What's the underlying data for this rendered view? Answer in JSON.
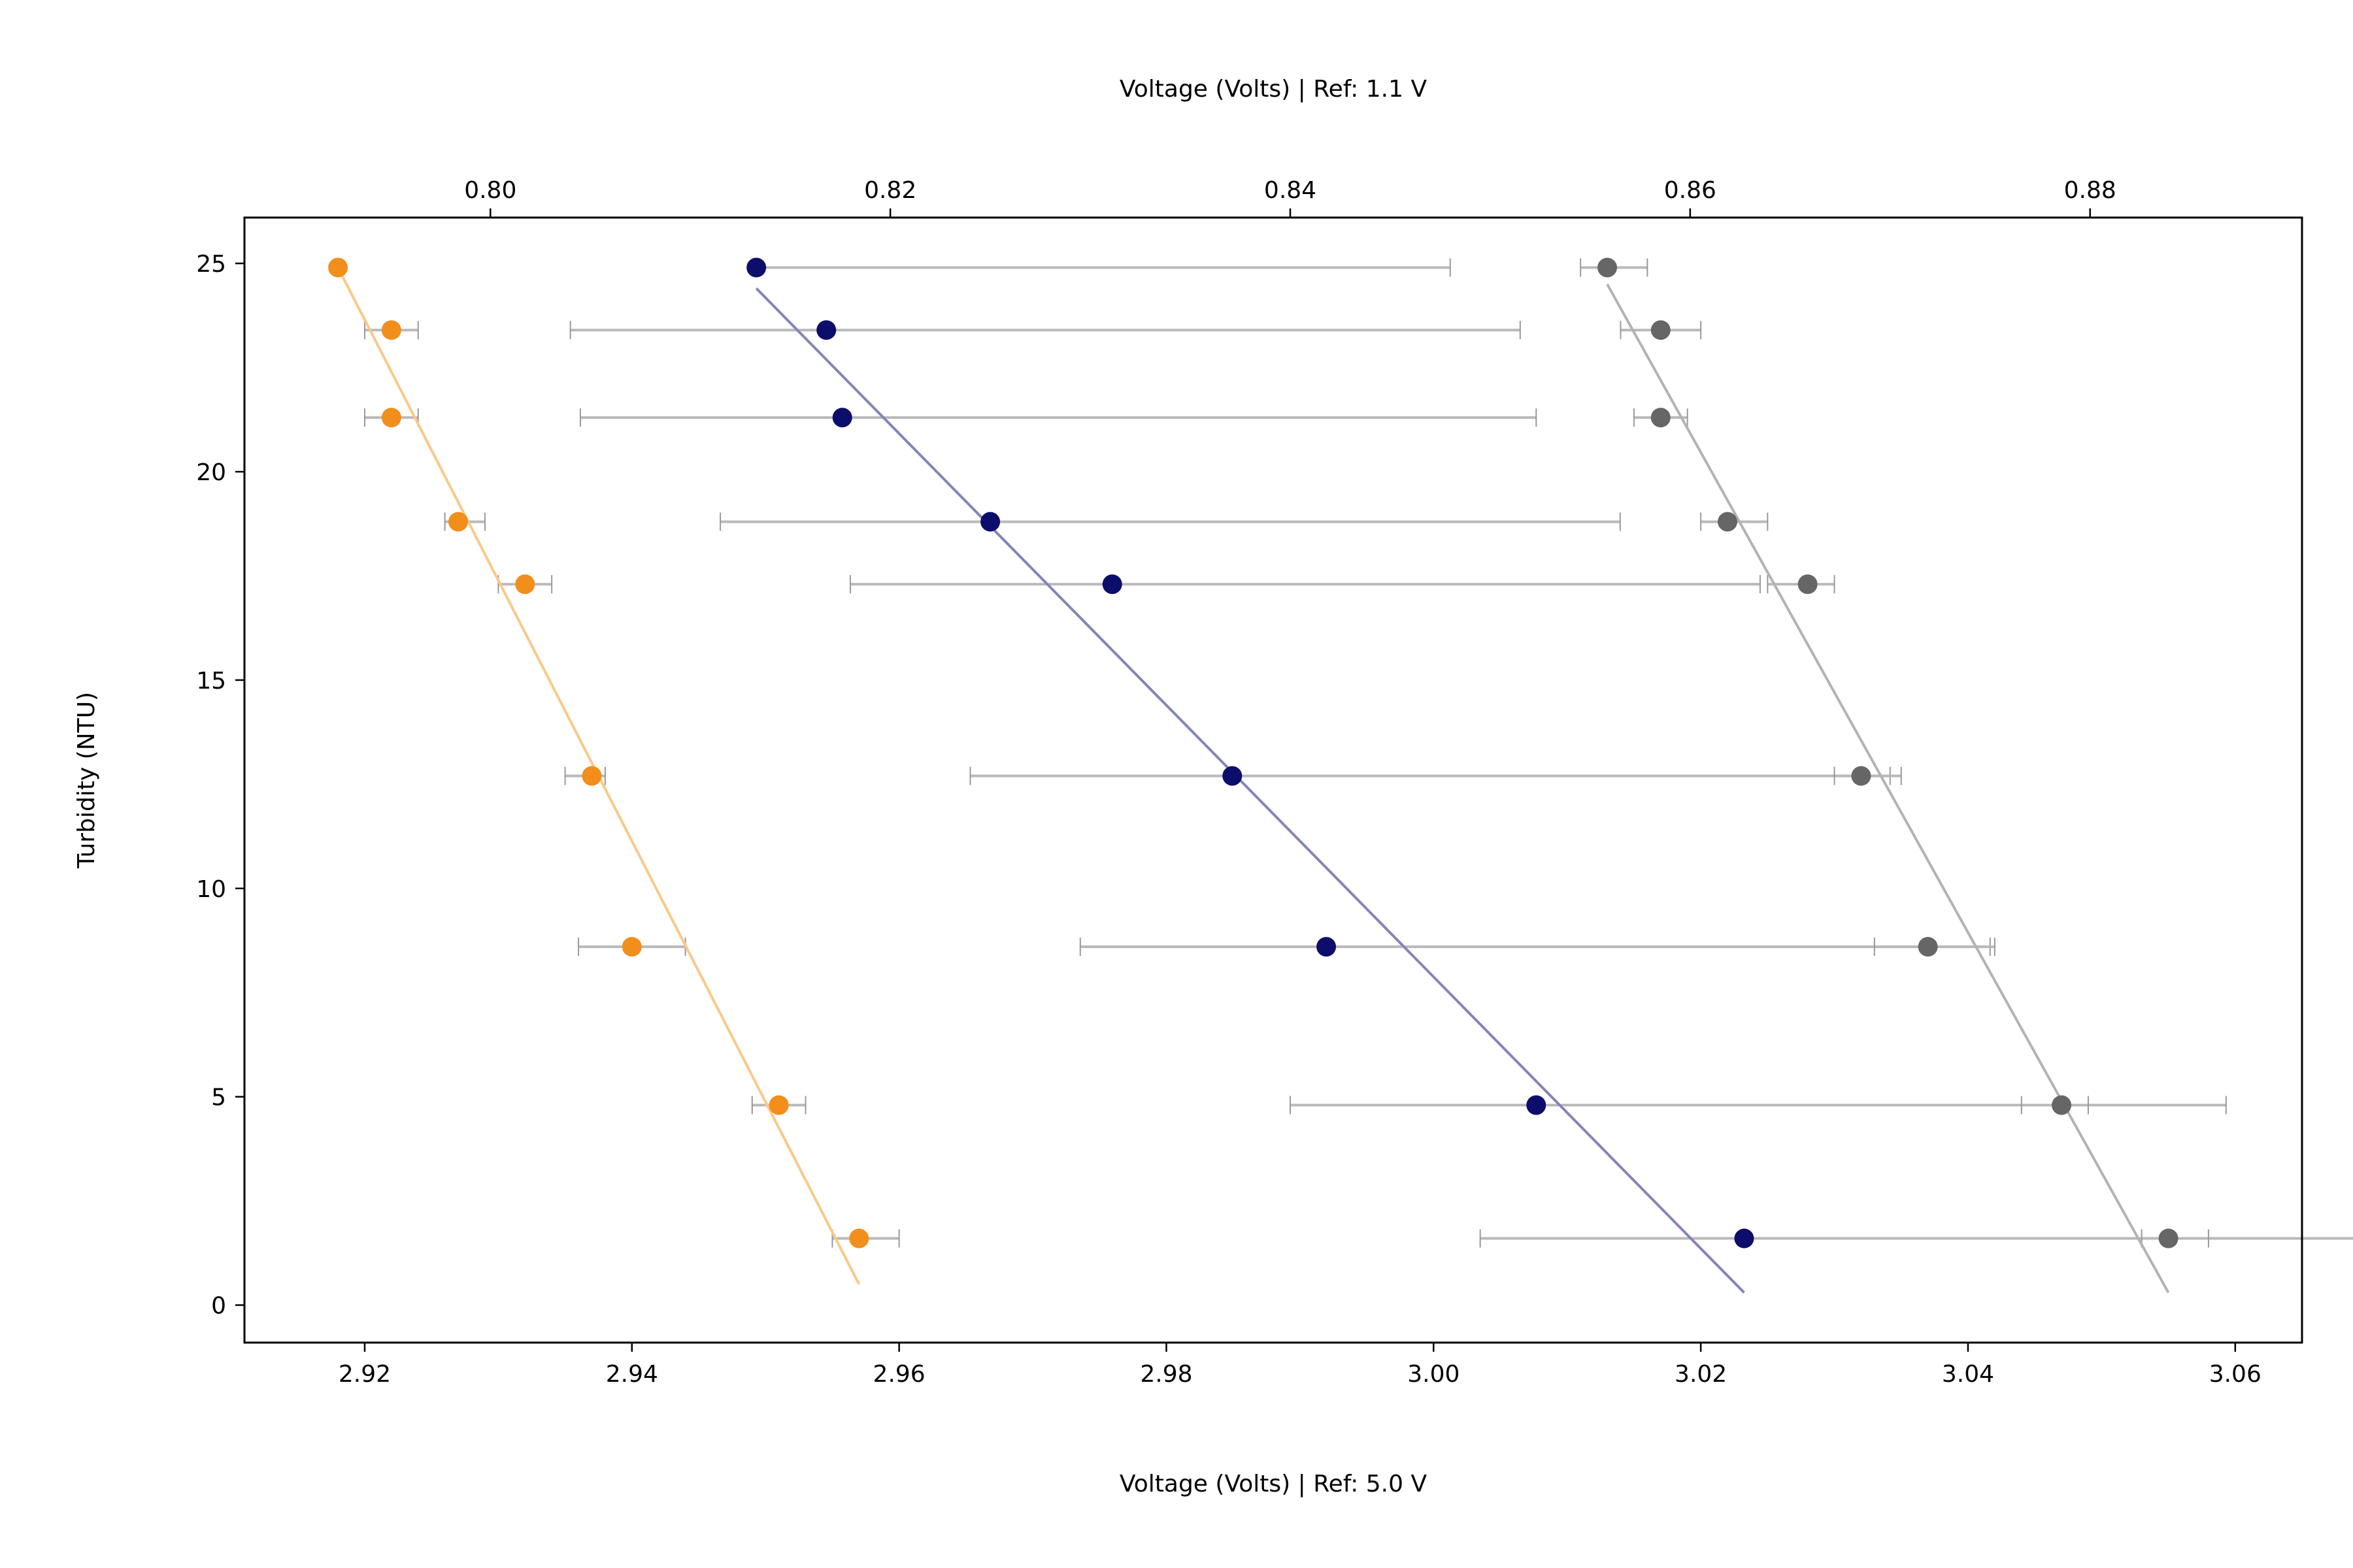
{
  "chart_data": {
    "type": "scatter",
    "xlabel": "Voltage (Volts) | Ref: 5.0 V",
    "x2label": "Voltage (Volts) | Ref: 1.1 V",
    "ylabel": "Turbidity (NTU)",
    "xlim": [
      2.911,
      3.065
    ],
    "x2lim": [
      0.7877,
      0.8906
    ],
    "ylim": [
      -0.9,
      26.1
    ],
    "x_ticks": [
      {
        "value": 2.92,
        "label": "2.92"
      },
      {
        "value": 2.94,
        "label": "2.94"
      },
      {
        "value": 2.96,
        "label": "2.96"
      },
      {
        "value": 2.98,
        "label": "2.98"
      },
      {
        "value": 3.0,
        "label": "3.00"
      },
      {
        "value": 3.02,
        "label": "3.02"
      },
      {
        "value": 3.04,
        "label": "3.04"
      },
      {
        "value": 3.06,
        "label": "3.06"
      }
    ],
    "x2_ticks": [
      {
        "value": 0.8,
        "label": "0.80"
      },
      {
        "value": 0.82,
        "label": "0.82"
      },
      {
        "value": 0.84,
        "label": "0.84"
      },
      {
        "value": 0.86,
        "label": "0.86"
      },
      {
        "value": 0.88,
        "label": "0.88"
      }
    ],
    "y_ticks": [
      {
        "value": 0,
        "label": "0"
      },
      {
        "value": 5,
        "label": "5"
      },
      {
        "value": 10,
        "label": "10"
      },
      {
        "value": 15,
        "label": "15"
      },
      {
        "value": 20,
        "label": "20"
      },
      {
        "value": 25,
        "label": "25"
      }
    ],
    "grid": false,
    "series": [
      {
        "axis": "x",
        "color": "#f28e1c",
        "fit_color": "#f9c98a",
        "points": [
          {
            "y": 24.9,
            "x": 2.918,
            "xerr_low": 2.918,
            "xerr_high": 2.918
          },
          {
            "y": 23.4,
            "x": 2.922,
            "xerr_low": 2.92,
            "xerr_high": 2.924
          },
          {
            "y": 21.3,
            "x": 2.922,
            "xerr_low": 2.92,
            "xerr_high": 2.924
          },
          {
            "y": 18.8,
            "x": 2.927,
            "xerr_low": 2.926,
            "xerr_high": 2.929
          },
          {
            "y": 17.3,
            "x": 2.932,
            "xerr_low": 2.93,
            "xerr_high": 2.934
          },
          {
            "y": 12.7,
            "x": 2.937,
            "xerr_low": 2.935,
            "xerr_high": 2.938
          },
          {
            "y": 8.6,
            "x": 2.94,
            "xerr_low": 2.936,
            "xerr_high": 2.944
          },
          {
            "y": 4.8,
            "x": 2.951,
            "xerr_low": 2.949,
            "xerr_high": 2.953
          },
          {
            "y": 1.6,
            "x": 2.957,
            "xerr_low": 2.955,
            "xerr_high": 2.96
          }
        ],
        "fit": {
          "x0": 2.918,
          "y0": 24.9,
          "x1": 2.957,
          "y1": 0.5
        }
      },
      {
        "axis": "x2",
        "color": "#0d0d6b",
        "fit_color": "#8385b8",
        "points": [
          {
            "y": 24.9,
            "x": 0.8133,
            "xerr_low": 0.8133,
            "xerr_high": 0.848
          },
          {
            "y": 23.4,
            "x": 0.8168,
            "xerr_low": 0.804,
            "xerr_high": 0.8515
          },
          {
            "y": 21.3,
            "x": 0.8176,
            "xerr_low": 0.8045,
            "xerr_high": 0.8523
          },
          {
            "y": 18.8,
            "x": 0.825,
            "xerr_low": 0.8115,
            "xerr_high": 0.8565
          },
          {
            "y": 17.3,
            "x": 0.8311,
            "xerr_low": 0.818,
            "xerr_high": 0.8635
          },
          {
            "y": 12.7,
            "x": 0.8371,
            "xerr_low": 0.824,
            "xerr_high": 0.87
          },
          {
            "y": 8.6,
            "x": 0.8418,
            "xerr_low": 0.8295,
            "xerr_high": 0.875
          },
          {
            "y": 4.8,
            "x": 0.8523,
            "xerr_low": 0.84,
            "xerr_high": 0.8868
          },
          {
            "y": 1.6,
            "x": 0.8627,
            "xerr_low": 0.8495,
            "xerr_high": 0.8965
          }
        ],
        "fit": {
          "x0": 0.8133,
          "y0": 24.4,
          "x1": 0.8627,
          "y1": 0.3
        }
      },
      {
        "axis": "x",
        "color": "#666666",
        "fit_color": "#b3b3b3",
        "points": [
          {
            "y": 24.9,
            "x": 3.013,
            "xerr_low": 3.011,
            "xerr_high": 3.016
          },
          {
            "y": 23.4,
            "x": 3.017,
            "xerr_low": 3.014,
            "xerr_high": 3.02
          },
          {
            "y": 21.3,
            "x": 3.017,
            "xerr_low": 3.015,
            "xerr_high": 3.019
          },
          {
            "y": 18.8,
            "x": 3.022,
            "xerr_low": 3.02,
            "xerr_high": 3.025
          },
          {
            "y": 17.3,
            "x": 3.028,
            "xerr_low": 3.025,
            "xerr_high": 3.03
          },
          {
            "y": 12.7,
            "x": 3.032,
            "xerr_low": 3.03,
            "xerr_high": 3.035
          },
          {
            "y": 8.6,
            "x": 3.037,
            "xerr_low": 3.033,
            "xerr_high": 3.042
          },
          {
            "y": 4.8,
            "x": 3.047,
            "xerr_low": 3.044,
            "xerr_high": 3.049
          },
          {
            "y": 1.6,
            "x": 3.055,
            "xerr_low": 3.053,
            "xerr_high": 3.058
          }
        ],
        "fit": {
          "x0": 3.013,
          "y0": 24.5,
          "x1": 3.055,
          "y1": 0.3
        }
      }
    ]
  }
}
